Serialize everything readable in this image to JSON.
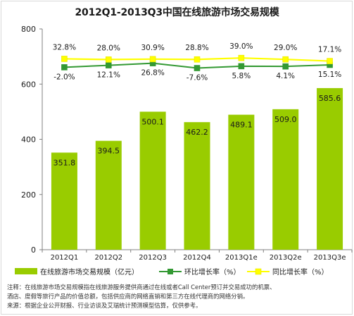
{
  "chart_data": {
    "type": "bar",
    "title": "2012Q1-2013Q3中国在线旅游市场交易规模",
    "categories": [
      "2012Q1",
      "2012Q2",
      "2012Q3",
      "2012Q4",
      "2013Q1e",
      "2013Q2e",
      "2013Q3e"
    ],
    "ylim": [
      0,
      800
    ],
    "yticks": [
      0,
      200,
      400,
      600,
      800
    ],
    "grid": false,
    "legend_position": "bottom",
    "series": [
      {
        "name": "在线旅游市场交易规模（亿元）",
        "type": "bar",
        "color": "#99cc00",
        "values": [
          351.8,
          394.5,
          500.1,
          462.2,
          489.1,
          509.0,
          585.6
        ],
        "labels": [
          "351.8",
          "394.5",
          "500.1",
          "462.2",
          "489.1",
          "509.0",
          "585.6"
        ]
      },
      {
        "name": "环比增长率（%）",
        "type": "line",
        "marker": "square",
        "color": "#339933",
        "values": [
          -2.0,
          12.1,
          26.8,
          -7.6,
          5.8,
          4.1,
          15.1
        ],
        "labels": [
          "-2.0%",
          "12.1%",
          "26.8%",
          "-7.6%",
          "5.8%",
          "4.1%",
          "15.1%"
        ]
      },
      {
        "name": "同比增长率（%）",
        "type": "line",
        "marker": "square",
        "color": "#ffff00",
        "values": [
          32.8,
          28.0,
          30.9,
          28.8,
          39.0,
          29.0,
          17.1
        ],
        "labels": [
          "32.8%",
          "28.0%",
          "30.9%",
          "28.8%",
          "39.0%",
          "29.0%",
          "17.1%"
        ]
      }
    ]
  },
  "notes": [
    "注释：在线旅游市场交易规模指在线旅游服务提供商通过在线或者Call Center预订并交易成功的机票、",
    "酒店、度假等旅行产品的价值总额，包括供应商的网络直销和第三方在线代理商的网络分销。",
    "来源：根据企业公开财报、行业访谈及艾瑞统计预测模型估算，仅供参考。"
  ]
}
